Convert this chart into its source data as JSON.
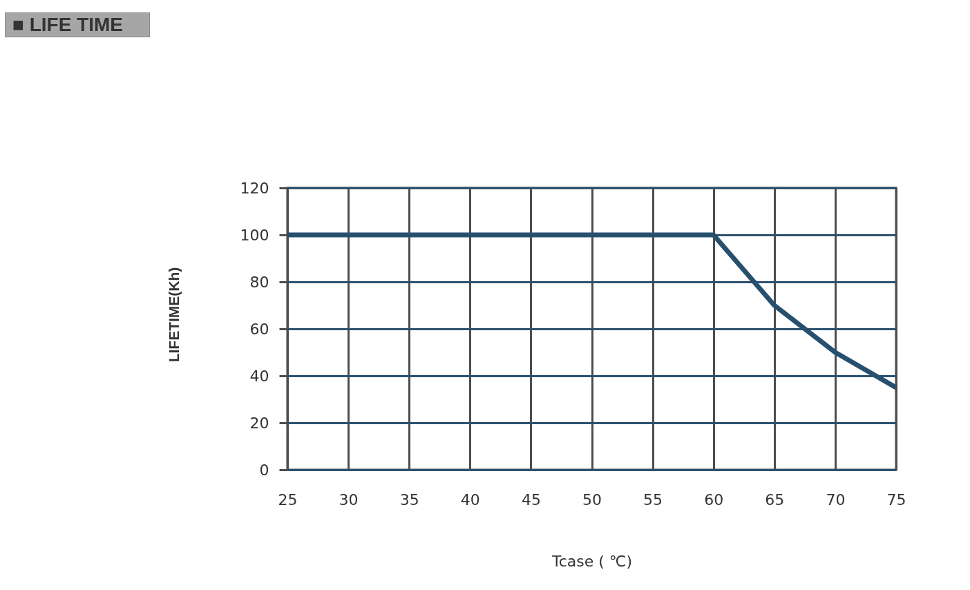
{
  "chart_data": {
    "type": "line",
    "title": "■ LIFE TIME",
    "xlabel": "Tcase ( ℃)",
    "ylabel": "LIFETIME(Kh)",
    "x": [
      25,
      60,
      65,
      70,
      75
    ],
    "values": [
      100,
      100,
      70,
      50,
      35
    ],
    "color": "#27506e",
    "xlim": [
      25,
      75
    ],
    "xticks": [
      25,
      30,
      35,
      40,
      45,
      50,
      55,
      60,
      65,
      70,
      75
    ],
    "ylim": [
      0,
      120
    ],
    "yticks": [
      0,
      20,
      40,
      60,
      80,
      100,
      120
    ],
    "grid": true,
    "line_style": "solid"
  }
}
